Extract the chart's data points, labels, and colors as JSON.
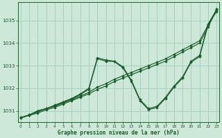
{
  "title": "Graphe pression niveau de la mer (hPa)",
  "bg_color": "#cde8d8",
  "grid_color": "#a8cfc0",
  "line_color": "#1a5c2a",
  "marker_color": "#1a5c2a",
  "ylim": [
    1030.5,
    1035.8
  ],
  "xlim": [
    -0.3,
    23.3
  ],
  "yticks": [
    1031,
    1032,
    1033,
    1034,
    1035
  ],
  "xticks": [
    0,
    1,
    2,
    3,
    4,
    5,
    6,
    7,
    8,
    9,
    10,
    11,
    12,
    13,
    14,
    15,
    16,
    17,
    18,
    19,
    20,
    21,
    22,
    23
  ],
  "series": [
    {
      "x": [
        0,
        1,
        2,
        3,
        4,
        5,
        6,
        7,
        8,
        9,
        10,
        11,
        12,
        13,
        14,
        15,
        16,
        17,
        18,
        19,
        20,
        21,
        22,
        23
      ],
      "y": [
        1030.7,
        1030.8,
        1030.9,
        1031.05,
        1031.15,
        1031.3,
        1031.45,
        1031.6,
        1031.75,
        1031.95,
        1032.1,
        1032.3,
        1032.45,
        1032.6,
        1032.75,
        1032.9,
        1033.05,
        1033.2,
        1033.4,
        1033.6,
        1033.8,
        1034.0,
        1034.7,
        1035.5
      ]
    },
    {
      "x": [
        0,
        1,
        2,
        3,
        4,
        5,
        6,
        7,
        8,
        9,
        10,
        11,
        12,
        13,
        14,
        15,
        16,
        17,
        18,
        19,
        20,
        21,
        22,
        23
      ],
      "y": [
        1030.7,
        1030.82,
        1030.95,
        1031.1,
        1031.2,
        1031.35,
        1031.5,
        1031.65,
        1031.82,
        1032.05,
        1032.2,
        1032.4,
        1032.55,
        1032.7,
        1032.85,
        1033.0,
        1033.15,
        1033.3,
        1033.5,
        1033.7,
        1033.9,
        1034.1,
        1034.8,
        1035.5
      ]
    },
    {
      "x": [
        0,
        1,
        2,
        3,
        4,
        5,
        6,
        7,
        8,
        9,
        10,
        11,
        12,
        13,
        14,
        15,
        16,
        17,
        18,
        19,
        20,
        21,
        22,
        23
      ],
      "y": [
        1030.7,
        1030.82,
        1031.0,
        1031.1,
        1031.25,
        1031.4,
        1031.55,
        1031.75,
        1032.0,
        1033.35,
        1033.25,
        1033.2,
        1032.95,
        1032.35,
        1031.5,
        1031.1,
        1031.2,
        1031.6,
        1032.1,
        1032.5,
        1033.2,
        1033.45,
        1034.85,
        1035.45
      ]
    },
    {
      "x": [
        0,
        1,
        2,
        3,
        4,
        5,
        6,
        7,
        8,
        9,
        10,
        11,
        12,
        13,
        14,
        15,
        16,
        17,
        18,
        19,
        20,
        21,
        22,
        23
      ],
      "y": [
        1030.68,
        1030.8,
        1031.0,
        1031.1,
        1031.22,
        1031.38,
        1031.52,
        1031.72,
        1031.95,
        1033.3,
        1033.2,
        1033.18,
        1032.9,
        1032.3,
        1031.45,
        1031.05,
        1031.15,
        1031.55,
        1032.05,
        1032.45,
        1033.15,
        1033.4,
        1034.8,
        1035.4
      ]
    }
  ]
}
